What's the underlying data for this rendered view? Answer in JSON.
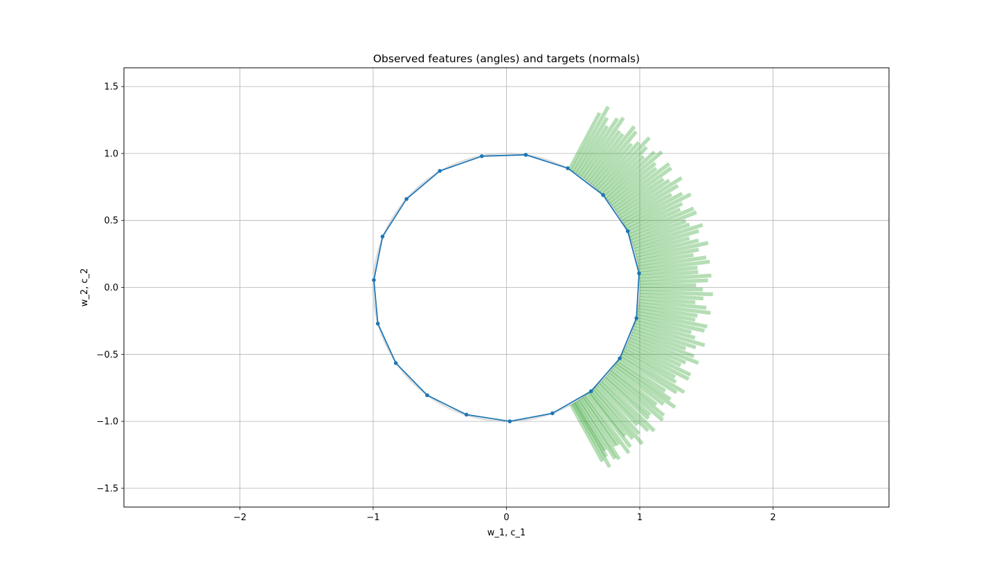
{
  "chart_data": {
    "type": "line",
    "title": "Observed features (angles) and targets (normals)",
    "xlabel": "w_1, c_1",
    "ylabel": "w_2, c_2",
    "xlim": [
      -2.87,
      2.87
    ],
    "ylim": [
      -1.64,
      1.64
    ],
    "grid": true,
    "x_ticks": [
      {
        "value": -2,
        "label": "−2"
      },
      {
        "value": -1,
        "label": "−1"
      },
      {
        "value": 0,
        "label": "0"
      },
      {
        "value": 1,
        "label": "1"
      },
      {
        "value": 2,
        "label": "2"
      }
    ],
    "y_ticks": [
      {
        "value": -1.5,
        "label": "−1.5"
      },
      {
        "value": -1.0,
        "label": "−1.0"
      },
      {
        "value": -0.5,
        "label": "−0.5"
      },
      {
        "value": 0.0,
        "label": "0.0"
      },
      {
        "value": 0.5,
        "label": "0.5"
      },
      {
        "value": 1.0,
        "label": "1.0"
      },
      {
        "value": 1.5,
        "label": "1.5"
      }
    ],
    "colors": {
      "polygon": "#1f77b4",
      "normals": "#2ca02c",
      "reference_circle": "#c8c8c8",
      "grid": "#b0b0b0"
    },
    "polygon_points": [
      [
        0.145,
        0.99
      ],
      [
        0.46,
        0.89
      ],
      [
        0.725,
        0.69
      ],
      [
        0.91,
        0.42
      ],
      [
        0.995,
        0.105
      ],
      [
        0.975,
        -0.23
      ],
      [
        0.85,
        -0.53
      ],
      [
        0.635,
        -0.775
      ],
      [
        0.345,
        -0.94
      ],
      [
        0.025,
        -1.0
      ],
      [
        -0.3,
        -0.95
      ],
      [
        -0.595,
        -0.805
      ],
      [
        -0.83,
        -0.565
      ],
      [
        -0.965,
        -0.27
      ],
      [
        -0.995,
        0.055
      ],
      [
        -0.93,
        0.38
      ],
      [
        -0.75,
        0.66
      ],
      [
        -0.5,
        0.87
      ],
      [
        -0.185,
        0.98
      ],
      [
        0.145,
        0.99
      ]
    ],
    "normals": {
      "start_radius": 1.0,
      "end_radius_range": [
        1.42,
        1.55
      ],
      "angles_deg": [
        -61.0,
        -60.0,
        -59.3,
        -58.6,
        -57.5,
        -56.6,
        -55.4,
        -54.5,
        -53.4,
        -52.0,
        -51.2,
        -50.0,
        -48.9,
        -47.7,
        -46.3,
        -45.2,
        -44.0,
        -42.6,
        -41.5,
        -40.2,
        -39.0,
        -37.9,
        -36.5,
        -35.3,
        -34.2,
        -33.0,
        -31.6,
        -30.4,
        -29.1,
        -27.9,
        -26.6,
        -25.3,
        -24.0,
        -22.7,
        -21.4,
        -20.1,
        -18.8,
        -17.5,
        -16.2,
        -14.9,
        -13.6,
        -12.3,
        -11.0,
        -9.7,
        -8.4,
        -7.1,
        -5.8,
        -4.5,
        -3.2,
        -1.9,
        -0.6,
        0.7,
        2.0,
        3.3,
        4.6,
        5.9,
        7.2,
        8.5,
        9.8,
        11.1,
        12.4,
        13.7,
        15.0,
        16.3,
        17.6,
        18.9,
        20.2,
        21.5,
        22.8,
        24.1,
        25.4,
        26.7,
        28.0,
        29.3,
        30.6,
        31.9,
        33.2,
        34.5,
        35.8,
        37.1,
        38.4,
        39.7,
        41.0,
        42.3,
        43.6,
        44.9,
        46.2,
        47.5,
        48.8,
        50.1,
        51.4,
        52.7,
        54.0,
        55.3,
        56.6,
        57.9,
        59.2,
        60.5,
        61.8
      ]
    }
  }
}
